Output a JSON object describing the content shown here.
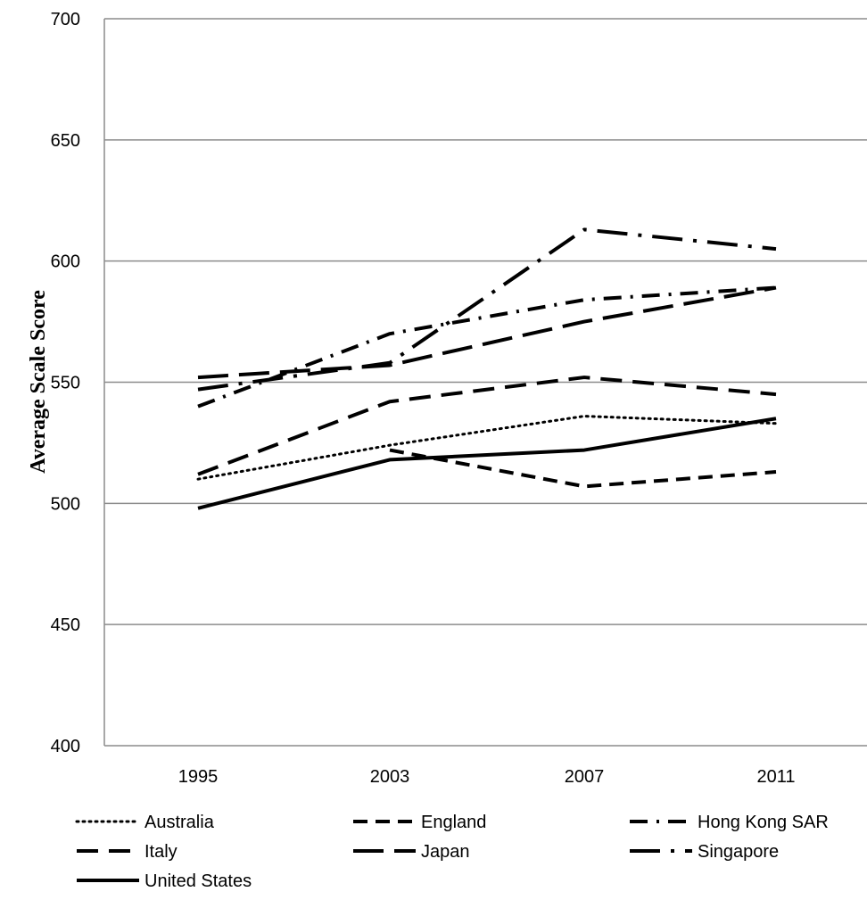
{
  "chart_data": {
    "type": "line",
    "title": "",
    "xlabel": "",
    "ylabel": "Average Scale Score",
    "x": [
      "1995",
      "2003",
      "2007",
      "2011"
    ],
    "ylim": [
      400,
      700
    ],
    "yticks": [
      400,
      450,
      500,
      550,
      600,
      650,
      700
    ],
    "grid": true,
    "legend_position": "bottom",
    "series": [
      {
        "name": "Australia",
        "values": [
          510,
          524,
          536,
          533
        ],
        "style": "dotted"
      },
      {
        "name": "England",
        "values": [
          null,
          522,
          507,
          513
        ],
        "style": "dashed"
      },
      {
        "name": "Hong Kong SAR",
        "values": [
          540,
          570,
          584,
          589
        ],
        "style": "long-dash-dot"
      },
      {
        "name": "Italy",
        "values": [
          512,
          542,
          552,
          545
        ],
        "style": "long-dash"
      },
      {
        "name": "Japan",
        "values": [
          552,
          557,
          575,
          589
        ],
        "style": "longer-dash"
      },
      {
        "name": "Singapore",
        "values": [
          547,
          558,
          613,
          605
        ],
        "style": "dash-dot"
      },
      {
        "name": "United States",
        "values": [
          498,
          518,
          522,
          535
        ],
        "style": "solid"
      }
    ]
  }
}
